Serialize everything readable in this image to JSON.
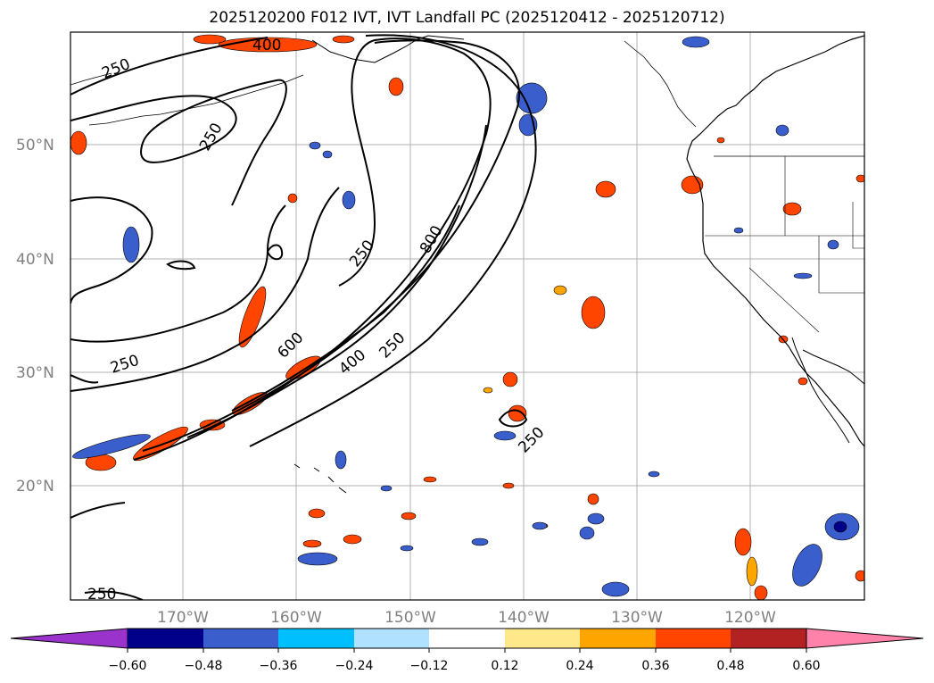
{
  "title": "2025120200 F012 IVT, IVT Landfall PC (2025120412 - 2025120712)",
  "map": {
    "latitude_labels": [
      "50°N",
      "40°N",
      "30°N",
      "20°N"
    ],
    "longitude_labels": [
      "170°W",
      "160°W",
      "150°W",
      "140°W",
      "130°W",
      "120°W"
    ],
    "ivt_contour_labels": [
      "400",
      "250",
      "250",
      "250",
      "800",
      "250",
      "600",
      "400",
      "250",
      "250",
      "250"
    ]
  },
  "colorbar": {
    "tick_labels": [
      "−0.60",
      "−0.48",
      "−0.36",
      "−0.24",
      "−0.12",
      "0.12",
      "0.24",
      "0.36",
      "0.48",
      "0.60"
    ],
    "colors": {
      "under": "#9933cc",
      "c1": "#00008b",
      "c2": "#3a5fcd",
      "c3": "#00bfff",
      "c4": "#b0e2ff",
      "c5": "#ffffff",
      "c6": "#ffe88a",
      "c7": "#ffa500",
      "c8": "#ff4500",
      "c9": "#b22222",
      "over": "#ff82ab"
    }
  }
}
